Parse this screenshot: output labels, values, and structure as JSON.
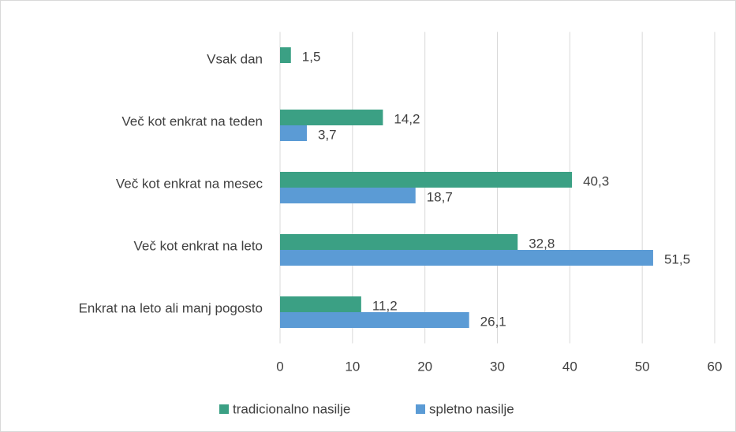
{
  "chart_data": {
    "type": "bar",
    "orientation": "horizontal",
    "categories": [
      "Vsak dan",
      "Več kot enkrat na teden",
      "Več kot enkrat na mesec",
      "Več kot enkrat na leto",
      "Enkrat na leto ali manj pogosto"
    ],
    "series": [
      {
        "name": "tradicionalno nasilje",
        "color": "#3ba084",
        "values": [
          1.5,
          14.2,
          40.3,
          32.8,
          11.2
        ],
        "value_labels": [
          "1,5",
          "14,2",
          "40,3",
          "32,8",
          "11,2"
        ]
      },
      {
        "name": "spletno nasilje",
        "color": "#5b9bd5",
        "values": [
          null,
          3.7,
          18.7,
          51.5,
          26.1
        ],
        "value_labels": [
          null,
          "3,7",
          "18,7",
          "51,5",
          "26,1"
        ]
      }
    ],
    "xlim": [
      0,
      60
    ],
    "xticks": [
      0,
      10,
      20,
      30,
      40,
      50,
      60
    ],
    "grid": true,
    "legend": "bottom"
  }
}
